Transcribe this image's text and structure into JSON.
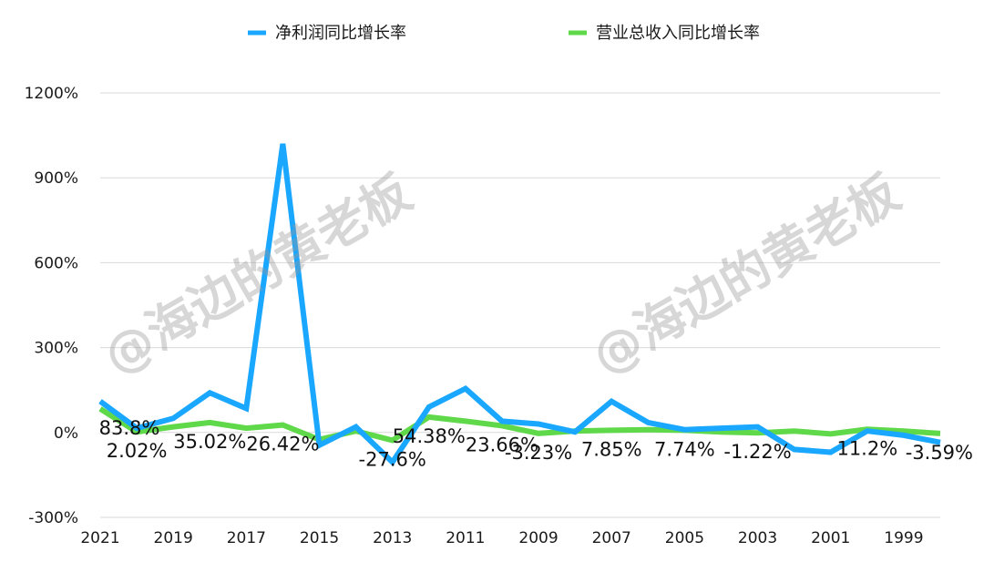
{
  "chart_data": {
    "type": "line",
    "x": [
      "2021",
      "2020",
      "2019",
      "2018",
      "2017",
      "2016",
      "2015",
      "2014",
      "2013",
      "2012",
      "2011",
      "2010",
      "2009",
      "2008",
      "2007",
      "2006",
      "2005",
      "2004",
      "2003",
      "2002",
      "2001",
      "2000",
      "1999",
      "1998"
    ],
    "x_tick_labels": [
      "2021",
      "2019",
      "2017",
      "2015",
      "2013",
      "2011",
      "2009",
      "2007",
      "2005",
      "2003",
      "2001",
      "1999"
    ],
    "ylim": [
      -300,
      1200
    ],
    "yticks": [
      -300,
      0,
      300,
      600,
      900,
      1200
    ],
    "ytick_labels": [
      "-300%",
      "0%",
      "300%",
      "600%",
      "900%",
      "1200%"
    ],
    "grid": true,
    "legend_position": "top",
    "series": [
      {
        "name": "净利润同比增长率",
        "color": "#1aa7ff",
        "values": [
          110,
          15,
          50,
          140,
          85,
          1020,
          -45,
          20,
          -105,
          90,
          155,
          40,
          30,
          2,
          110,
          35,
          10,
          15,
          20,
          -60,
          -70,
          5,
          -10,
          -35
        ]
      },
      {
        "name": "营业总收入同比增长率",
        "color": "#5fd84a",
        "values": [
          83.8,
          2.02,
          20,
          35.02,
          15,
          26.42,
          -25,
          5,
          -27.6,
          54.38,
          40,
          23.66,
          -3.23,
          5,
          7.85,
          10,
          7.74,
          2,
          -1.22,
          5,
          -5,
          11.2,
          5,
          -3.59
        ]
      }
    ],
    "data_labels": [
      {
        "text": "83.8%",
        "index": 0
      },
      {
        "text": "2.02%",
        "index": 1
      },
      {
        "text": "35.02%",
        "index": 3
      },
      {
        "text": "26.42%",
        "index": 5
      },
      {
        "text": "-27.6%",
        "index": 8
      },
      {
        "text": "54.38%",
        "index": 9
      },
      {
        "text": "23.66%",
        "index": 11
      },
      {
        "text": "-3.23%",
        "index": 12
      },
      {
        "text": "7.85%",
        "index": 14
      },
      {
        "text": "7.74%",
        "index": 16
      },
      {
        "text": "-1.22%",
        "index": 18
      },
      {
        "text": "11.2%",
        "index": 21
      },
      {
        "text": "-3.59%",
        "index": 23
      }
    ]
  },
  "watermark": "@海边的黄老板"
}
